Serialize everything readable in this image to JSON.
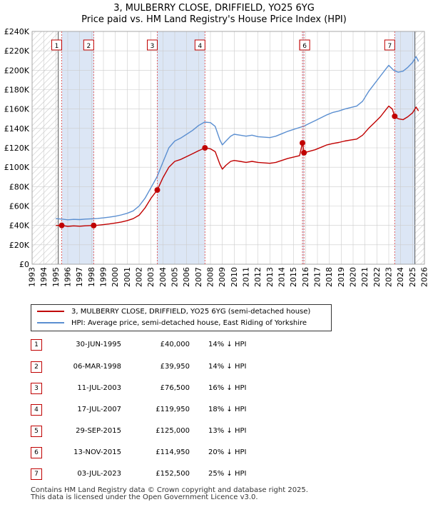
{
  "chart_data": {
    "type": "line",
    "title": "3, MULBERRY CLOSE, DRIFFIELD, YO25 6YG",
    "subtitle": "Price paid vs. HM Land Registry's House Price Index (HPI)",
    "xlim": [
      1993,
      2026
    ],
    "ylim": [
      0,
      240000
    ],
    "xticks": [
      "1993",
      "1994",
      "1995",
      "1996",
      "1997",
      "1998",
      "1999",
      "2000",
      "2001",
      "2002",
      "2003",
      "2004",
      "2005",
      "2006",
      "2007",
      "2008",
      "2009",
      "2010",
      "2011",
      "2012",
      "2013",
      "2014",
      "2015",
      "2016",
      "2017",
      "2018",
      "2019",
      "2020",
      "2021",
      "2022",
      "2023",
      "2024",
      "2025",
      "2026"
    ],
    "yticks": [
      {
        "value": 0,
        "label": "£0"
      },
      {
        "value": 20000,
        "label": "£20K"
      },
      {
        "value": 40000,
        "label": "£40K"
      },
      {
        "value": 60000,
        "label": "£60K"
      },
      {
        "value": 80000,
        "label": "£80K"
      },
      {
        "value": 100000,
        "label": "£100K"
      },
      {
        "value": 120000,
        "label": "£120K"
      },
      {
        "value": 140000,
        "label": "£140K"
      },
      {
        "value": 160000,
        "label": "£160K"
      },
      {
        "value": 180000,
        "label": "£180K"
      },
      {
        "value": 200000,
        "label": "£200K"
      },
      {
        "value": 220000,
        "label": "£220K"
      },
      {
        "value": 240000,
        "label": "£240K"
      }
    ],
    "hatched_ranges": [
      [
        1993,
        1995.2
      ],
      [
        2025.2,
        2026
      ]
    ],
    "shaded_ranges": [
      [
        1995.5,
        1998.2
      ],
      [
        2003.5,
        2007.55
      ],
      [
        2015.75,
        2015.87
      ],
      [
        2023.5,
        2025.2
      ]
    ],
    "series": [
      {
        "name": "3, MULBERRY CLOSE, DRIFFIELD, YO25 6YG (semi-detached house)",
        "color": "#c00000",
        "points": [
          [
            1995.0,
            40000
          ],
          [
            1995.5,
            40000
          ],
          [
            1996,
            39000
          ],
          [
            1996.5,
            39500
          ],
          [
            1997,
            39200
          ],
          [
            1997.5,
            39600
          ],
          [
            1998.17,
            39950
          ],
          [
            1998.5,
            40200
          ],
          [
            1999,
            40800
          ],
          [
            1999.5,
            41500
          ],
          [
            2000,
            42500
          ],
          [
            2000.5,
            43500
          ],
          [
            2001,
            45000
          ],
          [
            2001.5,
            47000
          ],
          [
            2002,
            50500
          ],
          [
            2002.5,
            58000
          ],
          [
            2003,
            68000
          ],
          [
            2003.53,
            76500
          ],
          [
            2004,
            89000
          ],
          [
            2004.5,
            100000
          ],
          [
            2005,
            106000
          ],
          [
            2005.5,
            108000
          ],
          [
            2006,
            111000
          ],
          [
            2006.5,
            114000
          ],
          [
            2007,
            117000
          ],
          [
            2007.54,
            119950
          ],
          [
            2008,
            119000
          ],
          [
            2008.4,
            116000
          ],
          [
            2008.8,
            103000
          ],
          [
            2009,
            98000
          ],
          [
            2009.3,
            102000
          ],
          [
            2009.7,
            106000
          ],
          [
            2010,
            107000
          ],
          [
            2010.5,
            106000
          ],
          [
            2011,
            105000
          ],
          [
            2011.5,
            106000
          ],
          [
            2012,
            105000
          ],
          [
            2012.5,
            104500
          ],
          [
            2013,
            104000
          ],
          [
            2013.5,
            105000
          ],
          [
            2014,
            107000
          ],
          [
            2014.5,
            109000
          ],
          [
            2015,
            110500
          ],
          [
            2015.5,
            112000
          ],
          [
            2015.74,
            125000
          ],
          [
            2015.87,
            114950
          ],
          [
            2016.2,
            116000
          ],
          [
            2016.8,
            118000
          ],
          [
            2017.3,
            120500
          ],
          [
            2017.8,
            123000
          ],
          [
            2018.3,
            124500
          ],
          [
            2018.8,
            125500
          ],
          [
            2019.3,
            127000
          ],
          [
            2019.8,
            128000
          ],
          [
            2020.3,
            129000
          ],
          [
            2020.8,
            133000
          ],
          [
            2021.3,
            140000
          ],
          [
            2021.8,
            146000
          ],
          [
            2022.3,
            152000
          ],
          [
            2022.8,
            160000
          ],
          [
            2023.0,
            163000
          ],
          [
            2023.3,
            160000
          ],
          [
            2023.5,
            152500
          ],
          [
            2023.8,
            150000
          ],
          [
            2024.2,
            149000
          ],
          [
            2024.6,
            152000
          ],
          [
            2025.0,
            156000
          ],
          [
            2025.3,
            162000
          ],
          [
            2025.5,
            158000
          ]
        ]
      },
      {
        "name": "HPI: Average price, semi-detached house, East Riding of Yorkshire",
        "color": "#5b8fd1",
        "points": [
          [
            1995.0,
            47000
          ],
          [
            1995.5,
            46500
          ],
          [
            1996,
            45800
          ],
          [
            1996.5,
            46200
          ],
          [
            1997,
            46000
          ],
          [
            1997.5,
            46500
          ],
          [
            1998,
            46800
          ],
          [
            1998.5,
            47200
          ],
          [
            1999,
            47800
          ],
          [
            1999.5,
            48500
          ],
          [
            2000,
            49500
          ],
          [
            2000.5,
            50800
          ],
          [
            2001,
            52500
          ],
          [
            2001.5,
            55000
          ],
          [
            2002,
            60000
          ],
          [
            2002.5,
            68000
          ],
          [
            2003,
            79000
          ],
          [
            2003.5,
            90000
          ],
          [
            2004,
            105000
          ],
          [
            2004.5,
            120000
          ],
          [
            2005,
            127000
          ],
          [
            2005.5,
            130000
          ],
          [
            2006,
            134000
          ],
          [
            2006.5,
            138000
          ],
          [
            2007,
            143000
          ],
          [
            2007.5,
            146500
          ],
          [
            2008,
            146000
          ],
          [
            2008.4,
            142000
          ],
          [
            2008.8,
            128000
          ],
          [
            2009,
            123000
          ],
          [
            2009.3,
            127000
          ],
          [
            2009.7,
            132000
          ],
          [
            2010,
            134000
          ],
          [
            2010.5,
            133000
          ],
          [
            2011,
            132000
          ],
          [
            2011.5,
            133000
          ],
          [
            2012,
            131500
          ],
          [
            2012.5,
            131000
          ],
          [
            2013,
            130500
          ],
          [
            2013.5,
            132000
          ],
          [
            2014,
            134500
          ],
          [
            2014.5,
            137000
          ],
          [
            2015,
            139000
          ],
          [
            2015.5,
            141000
          ],
          [
            2015.9,
            142500
          ],
          [
            2016.3,
            145000
          ],
          [
            2016.8,
            148000
          ],
          [
            2017.3,
            151000
          ],
          [
            2017.8,
            154000
          ],
          [
            2018.3,
            156500
          ],
          [
            2018.8,
            158000
          ],
          [
            2019.3,
            160000
          ],
          [
            2019.8,
            161500
          ],
          [
            2020.3,
            163000
          ],
          [
            2020.8,
            168000
          ],
          [
            2021.3,
            178000
          ],
          [
            2021.8,
            186000
          ],
          [
            2022.3,
            194000
          ],
          [
            2022.8,
            202000
          ],
          [
            2023.0,
            205000
          ],
          [
            2023.4,
            200000
          ],
          [
            2023.8,
            198000
          ],
          [
            2024.2,
            199000
          ],
          [
            2024.6,
            203000
          ],
          [
            2025.0,
            208000
          ],
          [
            2025.3,
            214000
          ],
          [
            2025.5,
            209000
          ]
        ]
      }
    ],
    "sales": [
      {
        "num": "1",
        "date": "30-JUN-1995",
        "price": "£40,000",
        "hpi": "14% ↓ HPI",
        "x": 1995.49,
        "y": 40000
      },
      {
        "num": "2",
        "date": "06-MAR-1998",
        "price": "£39,950",
        "hpi": "14% ↓ HPI",
        "x": 1998.18,
        "y": 39950
      },
      {
        "num": "3",
        "date": "11-JUL-2003",
        "price": "£76,500",
        "hpi": "16% ↓ HPI",
        "x": 2003.53,
        "y": 76500
      },
      {
        "num": "4",
        "date": "17-JUL-2007",
        "price": "£119,950",
        "hpi": "18% ↓ HPI",
        "x": 2007.54,
        "y": 119950
      },
      {
        "num": "5",
        "date": "29-SEP-2015",
        "price": "£125,000",
        "hpi": "13% ↓ HPI",
        "x": 2015.74,
        "y": 125000
      },
      {
        "num": "6",
        "date": "13-NOV-2015",
        "price": "£114,950",
        "hpi": "20% ↓ HPI",
        "x": 2015.87,
        "y": 114950
      },
      {
        "num": "7",
        "date": "03-JUL-2023",
        "price": "£152,500",
        "hpi": "25% ↓ HPI",
        "x": 2023.5,
        "y": 152500
      }
    ]
  },
  "legend": {
    "property": "3, MULBERRY CLOSE, DRIFFIELD, YO25 6YG (semi-detached house)",
    "hpi": "HPI: Average price, semi-detached house, East Riding of Yorkshire"
  },
  "footer": {
    "line1": "Contains HM Land Registry data © Crown copyright and database right 2025.",
    "line2": "This data is licensed under the Open Government Licence v3.0."
  },
  "colors": {
    "property": "#c00000",
    "hpi": "#5b8fd1",
    "shade": "#dce6f5",
    "grid": "#cccccc"
  }
}
